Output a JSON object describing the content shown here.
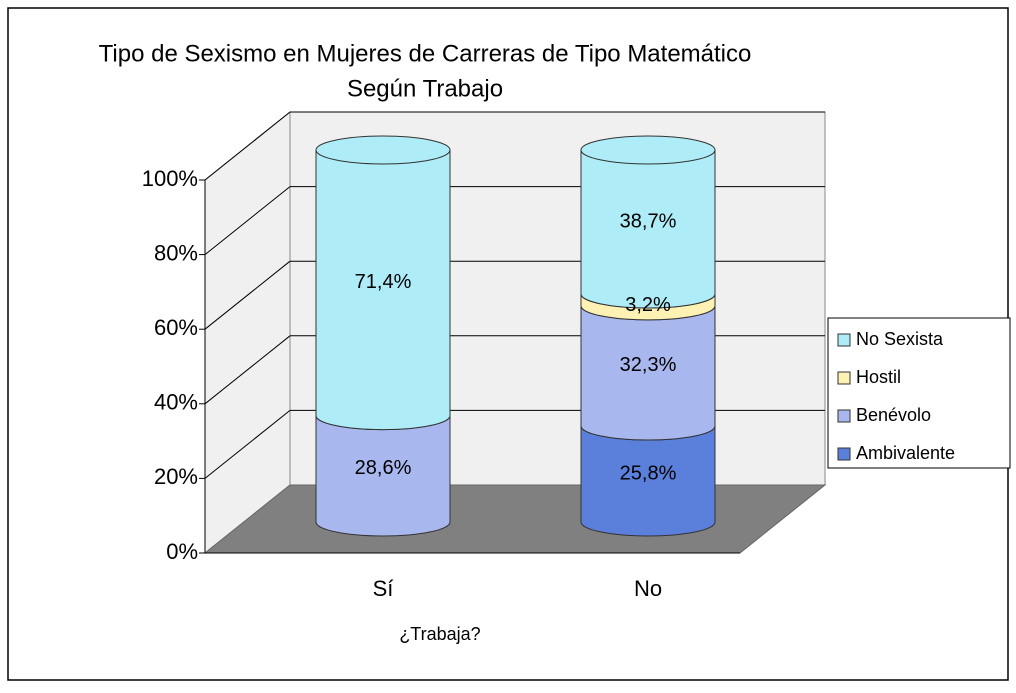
{
  "chart_data": {
    "type": "cylinder-stacked",
    "title": "Tipo de Sexismo en Mujeres de Carreras de Tipo Matemático",
    "subtitle": "Según Trabajo",
    "x_label": "¿Trabaja?",
    "categories": [
      "Sí",
      "No"
    ],
    "series": [
      {
        "name": "Ambivalente",
        "color": "#5b80dc",
        "values": [
          0,
          25.8
        ],
        "value_labels": [
          null,
          "25,8%"
        ]
      },
      {
        "name": "Benévolo",
        "color": "#a9b7ef",
        "values": [
          28.6,
          32.3
        ],
        "value_labels": [
          "28,6%",
          "32,3%"
        ]
      },
      {
        "name": "Hostil",
        "color": "#fdf1b4",
        "values": [
          0,
          3.2
        ],
        "value_labels": [
          null,
          "3,2%"
        ]
      },
      {
        "name": "No Sexista",
        "color": "#aeedf8",
        "values": [
          71.4,
          38.7
        ],
        "value_labels": [
          "71,4%",
          "38,7%"
        ]
      }
    ],
    "ylim": [
      0,
      100
    ],
    "yticks": [
      {
        "value": 0,
        "label": "0%"
      },
      {
        "value": 20,
        "label": "20%"
      },
      {
        "value": 40,
        "label": "40%"
      },
      {
        "value": 60,
        "label": "60%"
      },
      {
        "value": 80,
        "label": "80%"
      },
      {
        "value": 100,
        "label": "100%"
      }
    ],
    "grid": true
  }
}
